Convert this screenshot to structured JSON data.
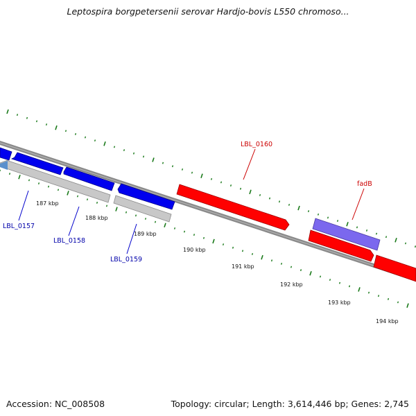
{
  "header": {
    "title": "Leptospira borgpetersenii serovar Hardjo-bovis L550 chromoso..."
  },
  "footer": {
    "accession": "Accession: NC_008508",
    "summary": "Topology: circular; Length: 3,614,446 bp; Genes: 2,745"
  },
  "scale": {
    "ticks": [
      "187 kbp",
      "188 kbp",
      "189 kbp",
      "190 kbp",
      "191 kbp",
      "192 kbp",
      "193 kbp",
      "194 kbp"
    ]
  },
  "gene_labels": {
    "reverse": [
      "LBL_0157",
      "LBL_0158",
      "LBL_0159"
    ],
    "forward": [
      "LBL_0160",
      "fadB"
    ]
  },
  "colors": {
    "forward_gene": "#ff0000",
    "reverse_gene": "#0000ff",
    "rna_or_other": "#7b68ee",
    "pseudo": "#c8c8c8",
    "backbone": "#808080",
    "tick": "#1a7a1a",
    "forward_label": "#cc0000",
    "reverse_label": "#0000aa"
  }
}
